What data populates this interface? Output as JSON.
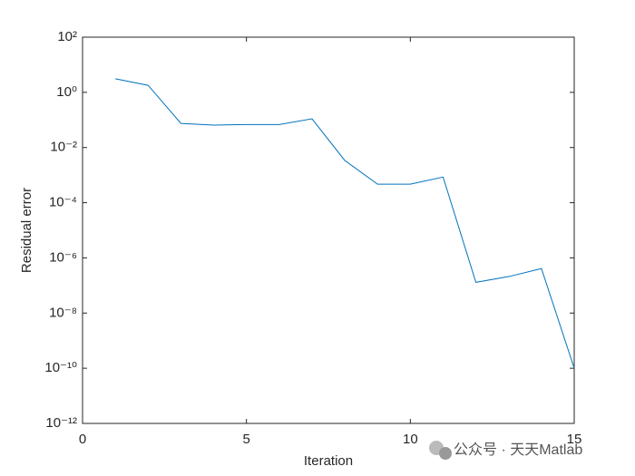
{
  "chart_data": {
    "type": "line",
    "yscale": "log",
    "xlabel": "Iteration",
    "ylabel": "Residual error",
    "x": [
      1,
      2,
      3,
      4,
      5,
      6,
      7,
      8,
      9,
      10,
      11,
      12,
      13,
      14,
      15
    ],
    "series": [
      {
        "color": "#0072bd",
        "values": [
          3.1,
          1.8,
          0.075,
          0.065,
          0.068,
          0.068,
          0.11,
          0.0034,
          0.00047,
          0.00047,
          0.00085,
          1.3e-07,
          2.1e-07,
          4.1e-07,
          1e-10
        ]
      }
    ],
    "xlim": [
      0,
      15
    ],
    "xticks": [
      0,
      5,
      10,
      15
    ],
    "ylim": [
      1e-12,
      100
    ],
    "yticks": [
      {
        "value": 1e-12,
        "label": "10⁻¹²"
      },
      {
        "value": 1e-10,
        "label": "10⁻¹⁰"
      },
      {
        "value": 1e-08,
        "label": "10⁻⁸"
      },
      {
        "value": 1e-06,
        "label": "10⁻⁶"
      },
      {
        "value": 0.0001,
        "label": "10⁻⁴"
      },
      {
        "value": 0.01,
        "label": "10⁻²"
      },
      {
        "value": 1,
        "label": "10⁰"
      },
      {
        "value": 100,
        "label": "10²"
      }
    ],
    "grid": false,
    "box": true
  },
  "watermark": "公众号 · 天天Matlab"
}
